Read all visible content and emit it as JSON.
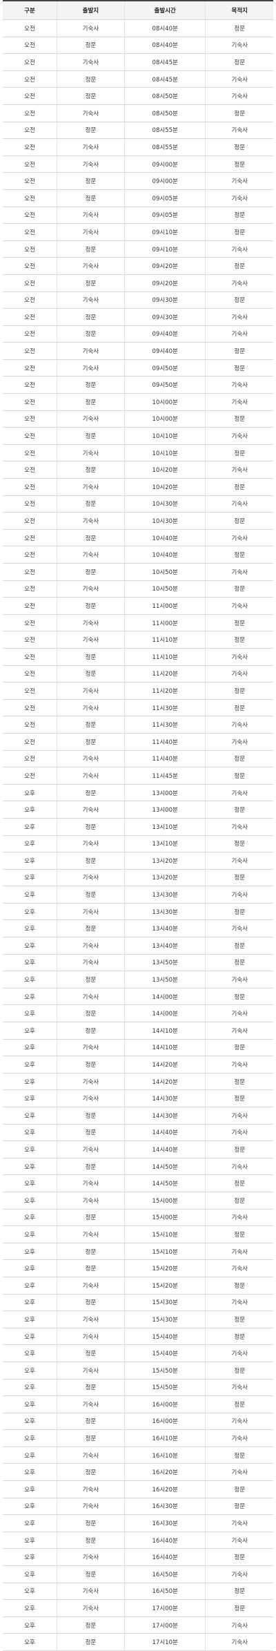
{
  "table": {
    "headers": [
      "구분",
      "출발지",
      "출발시간",
      "목적지"
    ],
    "rows": [
      [
        "오전",
        "기숙사",
        "08시40분",
        "정문"
      ],
      [
        "오전",
        "정문",
        "08시40분",
        "기숙사"
      ],
      [
        "오전",
        "기숙사",
        "08시45분",
        "정문"
      ],
      [
        "오전",
        "정문",
        "08시45분",
        "기숙사"
      ],
      [
        "오전",
        "정문",
        "08시50분",
        "기숙사"
      ],
      [
        "오전",
        "기숙사",
        "08시50분",
        "정문"
      ],
      [
        "오전",
        "정문",
        "08시55분",
        "기숙사"
      ],
      [
        "오전",
        "기숙사",
        "08시55분",
        "정문"
      ],
      [
        "오전",
        "기숙사",
        "09시00분",
        "정문"
      ],
      [
        "오전",
        "정문",
        "09시00분",
        "기숙사"
      ],
      [
        "오전",
        "정문",
        "09시05분",
        "기숙사"
      ],
      [
        "오전",
        "기숙사",
        "09시05분",
        "정문"
      ],
      [
        "오전",
        "기숙사",
        "09시10분",
        "정문"
      ],
      [
        "오전",
        "정문",
        "09시10분",
        "기숙사"
      ],
      [
        "오전",
        "기숙사",
        "09시20분",
        "정문"
      ],
      [
        "오전",
        "정문",
        "09시20분",
        "기숙사"
      ],
      [
        "오전",
        "기숙사",
        "09시30분",
        "정문"
      ],
      [
        "오전",
        "정문",
        "09시30분",
        "기숙사"
      ],
      [
        "오전",
        "정문",
        "09시40분",
        "기숙사"
      ],
      [
        "오전",
        "기숙사",
        "09시40분",
        "정문"
      ],
      [
        "오전",
        "기숙사",
        "09시50분",
        "정문"
      ],
      [
        "오전",
        "정문",
        "09시50분",
        "기숙사"
      ],
      [
        "오전",
        "정문",
        "10시00분",
        "기숙사"
      ],
      [
        "오전",
        "기숙사",
        "10시00분",
        "정문"
      ],
      [
        "오전",
        "정문",
        "10시10분",
        "기숙사"
      ],
      [
        "오전",
        "기숙사",
        "10시10분",
        "정문"
      ],
      [
        "오전",
        "정문",
        "10시20분",
        "기숙사"
      ],
      [
        "오전",
        "기숙사",
        "10시20분",
        "정문"
      ],
      [
        "오전",
        "정문",
        "10시30분",
        "기숙사"
      ],
      [
        "오전",
        "기숙사",
        "10시30분",
        "정문"
      ],
      [
        "오전",
        "정문",
        "10시40분",
        "기숙사"
      ],
      [
        "오전",
        "기숙사",
        "10시40분",
        "정문"
      ],
      [
        "오전",
        "정문",
        "10시50분",
        "기숙사"
      ],
      [
        "오전",
        "기숙사",
        "10시50분",
        "정문"
      ],
      [
        "오전",
        "정문",
        "11시00분",
        "기숙사"
      ],
      [
        "오전",
        "기숙사",
        "11시00분",
        "정문"
      ],
      [
        "오전",
        "기숙사",
        "11시10분",
        "정문"
      ],
      [
        "오전",
        "정문",
        "11시10분",
        "기숙사"
      ],
      [
        "오전",
        "정문",
        "11시20분",
        "기숙사"
      ],
      [
        "오전",
        "기숙사",
        "11시20분",
        "정문"
      ],
      [
        "오전",
        "기숙사",
        "11시30분",
        "정문"
      ],
      [
        "오전",
        "정문",
        "11시30분",
        "기숙사"
      ],
      [
        "오전",
        "정문",
        "11시40분",
        "기숙사"
      ],
      [
        "오전",
        "기숙사",
        "11시40분",
        "정문"
      ],
      [
        "오전",
        "기숙사",
        "11시45분",
        "정문"
      ],
      [
        "오후",
        "정문",
        "13시00분",
        "기숙사"
      ],
      [
        "오후",
        "기숙사",
        "13시00분",
        "정문"
      ],
      [
        "오후",
        "정문",
        "13시10분",
        "기숙사"
      ],
      [
        "오후",
        "기숙사",
        "13시10분",
        "정문"
      ],
      [
        "오후",
        "정문",
        "13시20분",
        "기숙사"
      ],
      [
        "오후",
        "기숙사",
        "13시20분",
        "정문"
      ],
      [
        "오후",
        "정문",
        "13시30분",
        "기숙사"
      ],
      [
        "오후",
        "기숙사",
        "13시30분",
        "정문"
      ],
      [
        "오후",
        "정문",
        "13시40분",
        "기숙사"
      ],
      [
        "오후",
        "기숙사",
        "13시40분",
        "정문"
      ],
      [
        "오후",
        "기숙사",
        "13시50분",
        "정문"
      ],
      [
        "오후",
        "정문",
        "13시50분",
        "기숙사"
      ],
      [
        "오후",
        "기숙사",
        "14시00분",
        "정문"
      ],
      [
        "오후",
        "정문",
        "14시00분",
        "기숙사"
      ],
      [
        "오후",
        "정문",
        "14시10분",
        "기숙사"
      ],
      [
        "오후",
        "기숙사",
        "14시10분",
        "정문"
      ],
      [
        "오후",
        "정문",
        "14시20분",
        "기숙사"
      ],
      [
        "오후",
        "기숙사",
        "14시20분",
        "정문"
      ],
      [
        "오후",
        "기숙사",
        "14시30분",
        "정문"
      ],
      [
        "오후",
        "정문",
        "14시30분",
        "기숙사"
      ],
      [
        "오후",
        "정문",
        "14시40분",
        "기숙사"
      ],
      [
        "오후",
        "기숙사",
        "14시40분",
        "정문"
      ],
      [
        "오후",
        "정문",
        "14시50분",
        "기숙사"
      ],
      [
        "오후",
        "기숙사",
        "14시50분",
        "정문"
      ],
      [
        "오후",
        "기숙사",
        "15시00분",
        "정문"
      ],
      [
        "오후",
        "정문",
        "15시00분",
        "기숙사"
      ],
      [
        "오후",
        "기숙사",
        "15시10분",
        "정문"
      ],
      [
        "오후",
        "정문",
        "15시10분",
        "기숙사"
      ],
      [
        "오후",
        "정문",
        "15시20분",
        "기숙사"
      ],
      [
        "오후",
        "기숙사",
        "15시20분",
        "정문"
      ],
      [
        "오후",
        "정문",
        "15시30분",
        "기숙사"
      ],
      [
        "오후",
        "기숙사",
        "15시30분",
        "정문"
      ],
      [
        "오후",
        "기숙사",
        "15시40분",
        "정문"
      ],
      [
        "오후",
        "정문",
        "15시40분",
        "기숙사"
      ],
      [
        "오후",
        "기숙사",
        "15시50분",
        "정문"
      ],
      [
        "오후",
        "정문",
        "15시50분",
        "기숙사"
      ],
      [
        "오후",
        "기숙사",
        "16시00분",
        "정문"
      ],
      [
        "오후",
        "정문",
        "16시00분",
        "기숙사"
      ],
      [
        "오후",
        "정문",
        "16시10분",
        "기숙사"
      ],
      [
        "오후",
        "기숙사",
        "16시10분",
        "정문"
      ],
      [
        "오후",
        "정문",
        "16시20분",
        "기숙사"
      ],
      [
        "오후",
        "기숙사",
        "16시20분",
        "정문"
      ],
      [
        "오후",
        "기숙사",
        "16시30분",
        "정문"
      ],
      [
        "오후",
        "정문",
        "16시30분",
        "기숙사"
      ],
      [
        "오후",
        "정문",
        "16시40분",
        "기숙사"
      ],
      [
        "오후",
        "기숙사",
        "16시40분",
        "정문"
      ],
      [
        "오후",
        "정문",
        "16시50분",
        "기숙사"
      ],
      [
        "오후",
        "기숙사",
        "16시50분",
        "정문"
      ],
      [
        "오후",
        "기숙사",
        "17시00분",
        "정문"
      ],
      [
        "오후",
        "정문",
        "17시00분",
        "기숙사"
      ],
      [
        "오후",
        "정문",
        "17시10분",
        "기숙사"
      ]
    ]
  }
}
